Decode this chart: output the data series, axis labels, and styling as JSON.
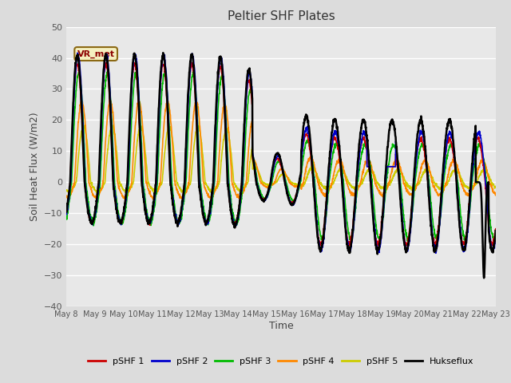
{
  "title": "Peltier SHF Plates",
  "xlabel": "Time",
  "ylabel": "Soil Heat Flux (W/m2)",
  "ylim": [
    -40,
    50
  ],
  "yticks": [
    -40,
    -30,
    -20,
    -10,
    0,
    10,
    20,
    30,
    40,
    50
  ],
  "annotation_text": "VR_met",
  "background_color": "#dcdcdc",
  "plot_bg_color": "#e8e8e8",
  "line_colors": {
    "pSHF 1": "#cc0000",
    "pSHF 2": "#0000cc",
    "pSHF 3": "#00bb00",
    "pSHF 4": "#ff8800",
    "pSHF 5": "#cccc00",
    "Hukseflux": "#000000"
  },
  "line_widths": {
    "pSHF 1": 1.2,
    "pSHF 2": 1.2,
    "pSHF 3": 1.2,
    "pSHF 4": 1.2,
    "pSHF 5": 1.2,
    "Hukseflux": 1.8
  },
  "num_days": 15,
  "points_per_day": 144,
  "start_day": 8
}
